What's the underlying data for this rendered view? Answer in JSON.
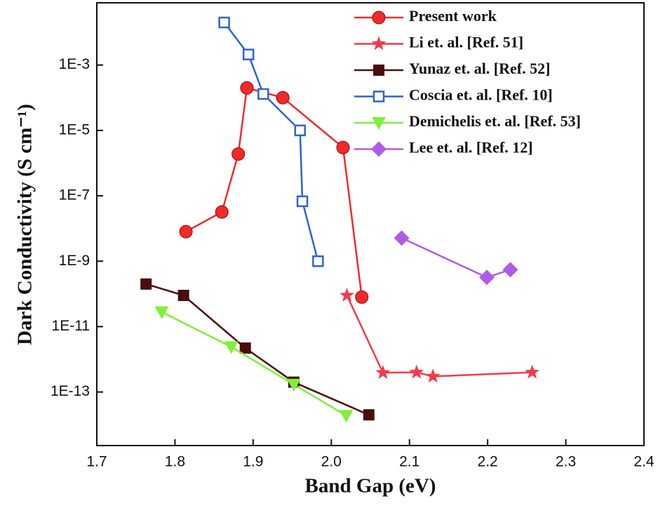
{
  "chart_data": {
    "type": "line",
    "x_label": "Band Gap (eV)",
    "y_label": "Dark Conductivity (S cm⁻¹)",
    "log_y": true,
    "legend": "upper right",
    "xlim": [
      1.7,
      2.4
    ],
    "xticks": [
      1.7,
      1.8,
      1.9,
      {
        "value": 2,
        "label": "2.0"
      },
      2.1,
      2.2,
      2.3,
      2.4
    ],
    "ylim": [
      2.3e-15,
      0.08
    ],
    "yticks": [
      {
        "value": 1e-13,
        "label": "1E-13"
      },
      {
        "value": 1e-11,
        "label": "1E-11"
      },
      {
        "value": 1e-09,
        "label": "1E-9"
      },
      {
        "value": 1e-07,
        "label": "1E-7"
      },
      {
        "value": 1e-05,
        "label": "1E-5"
      },
      {
        "value": 0.001,
        "label": "1E-3"
      }
    ],
    "series": [
      {
        "name": "Present work",
        "color": "#ee2b2b",
        "marker": "circle",
        "x": [
          1.814,
          1.86,
          1.881,
          1.892,
          1.938,
          2.015,
          2.039
        ],
        "values": [
          8e-09,
          3.2e-08,
          1.9e-06,
          0.0002,
          0.0001,
          3e-06,
          8e-11
        ]
      },
      {
        "name": "Li et. al. [Ref. 51]",
        "color": "#f23a4a",
        "marker": "star",
        "x": [
          2.02,
          2.066,
          2.109,
          2.13,
          2.257
        ],
        "values": [
          9e-11,
          3.9e-13,
          4e-13,
          3e-13,
          4e-13
        ]
      },
      {
        "name": "Yunaz et. al. [Ref. 52]",
        "color": "#4a0c0c",
        "marker": "square",
        "x": [
          1.763,
          1.811,
          1.89,
          1.952,
          2.048
        ],
        "values": [
          2e-10,
          9e-11,
          2.2e-12,
          2e-13,
          2e-14
        ]
      },
      {
        "name": "Coscia et. al. [Ref. 10]",
        "color": "#2f62d8",
        "marker": "open-square",
        "x": [
          1.863,
          1.894,
          1.913,
          1.96,
          1.963,
          1.983
        ],
        "values": [
          0.02,
          0.0021,
          0.00013,
          1e-05,
          6.8e-08,
          1e-09
        ]
      },
      {
        "name": "Demichelis et. al. [Ref. 53]",
        "color": "#7ef03a",
        "marker": "triangle-down",
        "x": [
          1.783,
          1.872,
          1.952,
          2.019
        ],
        "values": [
          2.8e-11,
          2.4e-12,
          1.7e-13,
          1.9e-14
        ]
      },
      {
        "name": "Lee et. al. [Ref. 12]",
        "color": "#b05be8",
        "marker": "diamond",
        "x": [
          2.09,
          2.199,
          2.229
        ],
        "values": [
          5.1e-09,
          3.2e-10,
          5.5e-10
        ]
      }
    ]
  }
}
